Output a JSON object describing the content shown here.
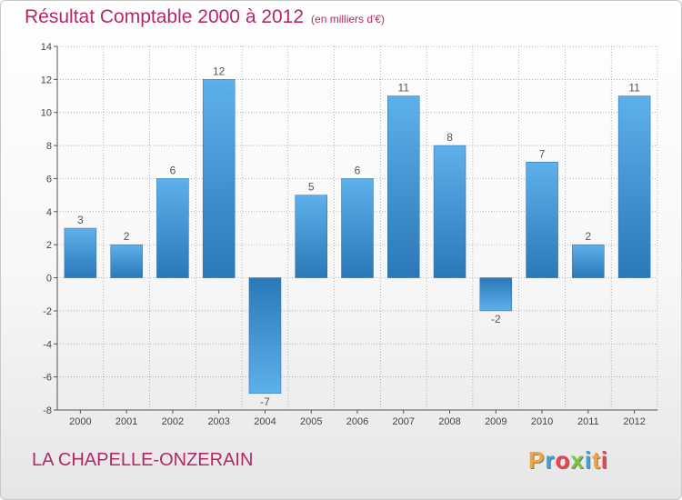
{
  "header": {
    "title": "Résultat Comptable 2000 à 2012",
    "subtitle": "(en milliers d'€)"
  },
  "commune": "LA CHAPELLE-ONZERAIN",
  "brand": {
    "name": "Proxiti",
    "letter_colors": [
      "#f2a33a",
      "#3fa0dc",
      "#e8434e",
      "#7cc243",
      "#3fa0dc",
      "#f2a33a",
      "#e8434e"
    ]
  },
  "colors": {
    "bar_light": "#5eb0ea",
    "bar_dark": "#2a78b8",
    "grid": "#9a9a9a",
    "axis": "#555555",
    "accent": "#b5266a"
  },
  "chart_data": {
    "type": "bar",
    "title": "Résultat Comptable 2000 à 2012",
    "subtitle": "(en milliers d'€)",
    "xlabel": "",
    "ylabel": "",
    "categories": [
      "2000",
      "2001",
      "2002",
      "2003",
      "2004",
      "2005",
      "2006",
      "2007",
      "2008",
      "2009",
      "2010",
      "2011",
      "2012"
    ],
    "values": [
      3,
      2,
      6,
      12,
      -7,
      5,
      6,
      11,
      8,
      -2,
      7,
      2,
      11
    ],
    "data_labels": [
      "3",
      "2",
      "6",
      "12",
      "-7",
      "5",
      "6",
      "11",
      "8",
      "-2",
      "7",
      "2",
      "11"
    ],
    "yticks": [
      -8,
      -6,
      -4,
      -2,
      0,
      2,
      4,
      6,
      8,
      10,
      12,
      14
    ],
    "ylim": [
      -8,
      14
    ],
    "grid": true
  }
}
